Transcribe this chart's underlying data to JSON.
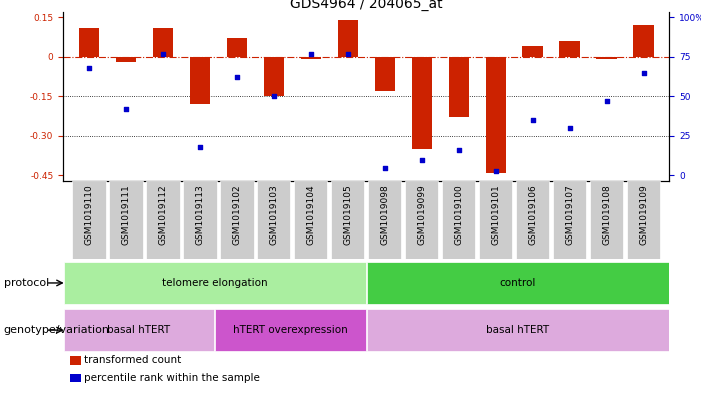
{
  "title": "GDS4964 / 204065_at",
  "samples": [
    "GSM1019110",
    "GSM1019111",
    "GSM1019112",
    "GSM1019113",
    "GSM1019102",
    "GSM1019103",
    "GSM1019104",
    "GSM1019105",
    "GSM1019098",
    "GSM1019099",
    "GSM1019100",
    "GSM1019101",
    "GSM1019106",
    "GSM1019107",
    "GSM1019108",
    "GSM1019109"
  ],
  "bar_values": [
    0.11,
    -0.02,
    0.11,
    -0.18,
    0.07,
    -0.15,
    -0.01,
    0.14,
    -0.13,
    -0.35,
    -0.23,
    -0.44,
    0.04,
    0.06,
    -0.01,
    0.12
  ],
  "dot_values": [
    68,
    42,
    77,
    18,
    62,
    50,
    77,
    77,
    5,
    10,
    16,
    3,
    35,
    30,
    47,
    65
  ],
  "ylim_left": [
    -0.47,
    0.17
  ],
  "ylim_right": [
    -0.47,
    0.17
  ],
  "yticks_left": [
    0.15,
    0.0,
    -0.15,
    -0.3,
    -0.45
  ],
  "ytick_labels_left": [
    "0.15",
    "0",
    "-0.15",
    "-0.30",
    "-0.45"
  ],
  "ytick_labels_right": [
    "100%",
    "75",
    "50",
    "25",
    "0"
  ],
  "right_tick_positions": [
    0.15,
    0.0,
    -0.15,
    -0.3,
    -0.45
  ],
  "hline_y": 0.0,
  "dotted_lines": [
    -0.15,
    -0.3
  ],
  "bar_color": "#cc2200",
  "dot_color": "#0000cc",
  "bg_color": "#ffffff",
  "sample_band_color": "#cccccc",
  "protocol_label": "protocol",
  "protocol_groups": [
    {
      "label": "telomere elongation",
      "start": 0,
      "end": 8,
      "color": "#aaeea0"
    },
    {
      "label": "control",
      "start": 8,
      "end": 16,
      "color": "#44cc44"
    }
  ],
  "genotype_label": "genotype/variation",
  "genotype_groups": [
    {
      "label": "basal hTERT",
      "start": 0,
      "end": 4,
      "color": "#ddaadd"
    },
    {
      "label": "hTERT overexpression",
      "start": 4,
      "end": 8,
      "color": "#cc55cc"
    },
    {
      "label": "basal hTERT",
      "start": 8,
      "end": 16,
      "color": "#ddaadd"
    }
  ],
  "legend_items": [
    {
      "color": "#cc2200",
      "label": "transformed count"
    },
    {
      "color": "#0000cc",
      "label": "percentile rank within the sample"
    }
  ],
  "title_fontsize": 10,
  "tick_fontsize": 6.5,
  "label_fontsize": 7.5,
  "row_label_fontsize": 8
}
